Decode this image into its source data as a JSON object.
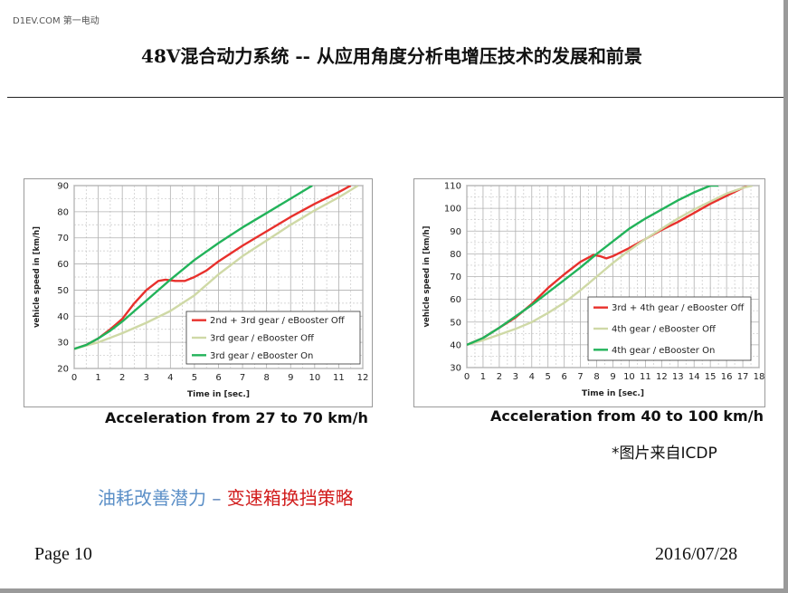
{
  "watermark": "D1EV.COM 第一电动",
  "title": "48V混合动力系统 -- 从应用角度分析电增压技术的发展和前景",
  "source_note": "*图片来自ICDP",
  "subtitle": {
    "part1": "油耗改善潜力",
    "sep": " – ",
    "part2": "变速箱换挡策略"
  },
  "footer": {
    "page": "Page 10",
    "date": "2016/07/28"
  },
  "colors": {
    "red": "#e8302c",
    "light_green": "#cfd9a6",
    "green": "#22b35a"
  },
  "chart_data": [
    {
      "type": "line",
      "caption": "Acceleration from 27 to 70 km/h",
      "xlabel": "Time in [sec.]",
      "ylabel": "vehicle speed in [km/h]",
      "xlim": [
        0,
        12
      ],
      "ylim": [
        20,
        90
      ],
      "xticks": [
        0,
        1,
        2,
        3,
        4,
        5,
        6,
        7,
        8,
        9,
        10,
        11,
        12
      ],
      "yticks": [
        20,
        30,
        40,
        50,
        60,
        70,
        80,
        90
      ],
      "grid": true,
      "legend_position": "bottom-right",
      "series": [
        {
          "name": "2nd + 3rd gear / eBooster Off",
          "color": "#e8302c",
          "x": [
            0,
            0.5,
            1,
            1.5,
            2,
            2.5,
            3,
            3.5,
            3.8,
            4.2,
            4.6,
            5,
            5.5,
            6,
            7,
            8,
            9,
            10,
            11,
            11.5
          ],
          "y": [
            27.5,
            29,
            31.5,
            35,
            39,
            45,
            50,
            53.5,
            54,
            53.5,
            53.5,
            55,
            57.5,
            61,
            67,
            72.5,
            78,
            83,
            87.5,
            90
          ]
        },
        {
          "name": "3rd gear / eBooster Off",
          "color": "#cfd9a6",
          "x": [
            0,
            1,
            2,
            3,
            4,
            5,
            6,
            7,
            8,
            9,
            10,
            11,
            11.8
          ],
          "y": [
            27.5,
            30,
            33.5,
            37.5,
            42,
            48,
            56,
            63,
            69,
            75,
            80.5,
            85.5,
            90
          ]
        },
        {
          "name": "3rd gear / eBooster On",
          "color": "#22b35a",
          "x": [
            0,
            0.5,
            1,
            1.5,
            2,
            3,
            4,
            5,
            6,
            7,
            8,
            9,
            9.9
          ],
          "y": [
            27.5,
            29,
            31.5,
            34.5,
            38,
            46,
            54,
            61.5,
            68,
            74,
            79.5,
            85,
            90
          ]
        }
      ]
    },
    {
      "type": "line",
      "caption": "Acceleration from 40 to 100 km/h",
      "xlabel": "Time in [sec.]",
      "ylabel": "vehicle speed in [km/h]",
      "xlim": [
        0,
        18
      ],
      "ylim": [
        30,
        110
      ],
      "xticks": [
        0,
        1,
        2,
        3,
        4,
        5,
        6,
        7,
        8,
        9,
        10,
        11,
        12,
        13,
        14,
        15,
        16,
        17,
        18
      ],
      "yticks": [
        30,
        40,
        50,
        60,
        70,
        80,
        90,
        100,
        110
      ],
      "grid": true,
      "legend_position": "bottom-right",
      "series": [
        {
          "name": "3rd + 4th gear / eBooster Off",
          "color": "#e8302c",
          "x": [
            0,
            1,
            2,
            3,
            4,
            5,
            6,
            7,
            7.8,
            8.2,
            8.6,
            9,
            10,
            11,
            12,
            13,
            14,
            15,
            16,
            17,
            17.4
          ],
          "y": [
            40,
            43,
            47.5,
            52,
            58,
            65,
            71,
            76.5,
            79.5,
            79,
            78,
            79,
            82.5,
            86.5,
            90.5,
            94,
            98,
            102,
            105.5,
            109,
            110
          ]
        },
        {
          "name": "4th gear / eBooster Off",
          "color": "#cfd9a6",
          "x": [
            0,
            1,
            2,
            3,
            4,
            5,
            6,
            7,
            8,
            9,
            10,
            11,
            12,
            13,
            14,
            15,
            16,
            17,
            17.6
          ],
          "y": [
            40,
            42,
            44.5,
            47,
            50,
            54,
            58.5,
            64,
            70,
            76,
            81.5,
            86.5,
            91,
            95.5,
            99.5,
            103,
            106.5,
            109,
            110
          ]
        },
        {
          "name": "4th gear / eBooster On",
          "color": "#22b35a",
          "x": [
            0,
            1,
            2,
            3,
            4,
            5,
            6,
            7,
            8,
            9,
            10,
            11,
            12,
            13,
            14,
            15,
            15.5
          ],
          "y": [
            40,
            43,
            47.5,
            52.5,
            57.5,
            63,
            68.5,
            74,
            80,
            85.5,
            91,
            95.5,
            99.5,
            103.5,
            107,
            110,
            110
          ]
        }
      ]
    }
  ]
}
